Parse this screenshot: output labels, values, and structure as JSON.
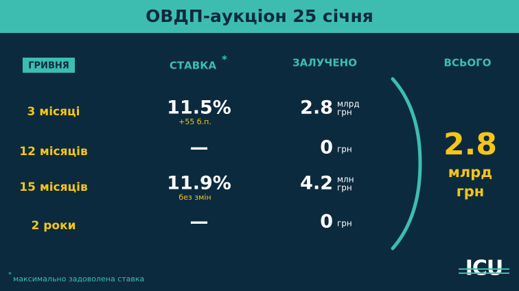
{
  "header": {
    "title": "ОВДП-аукціон 25 січня"
  },
  "columns": {
    "currency": "ГРИВНЯ",
    "rate": "СТАВКА",
    "rate_mark": "*",
    "raised": "ЗАЛУЧЕНО",
    "total": "ВСЬОГО"
  },
  "rows": [
    {
      "term": "3 місяці",
      "rate": "11.5%",
      "rate_note": "+55 б.п.",
      "amount": "2.8",
      "unit": [
        "млрд",
        "грн"
      ]
    },
    {
      "term": "12 місяців",
      "rate": "—",
      "amount": "0",
      "unit": [
        "грн"
      ]
    },
    {
      "term": "15 місяців",
      "rate": "11.9%",
      "rate_note": "без змін",
      "amount": "4.2",
      "unit": [
        "млн",
        "грн"
      ]
    },
    {
      "term": "2 роки",
      "rate": "—",
      "amount": "0",
      "unit": [
        "грн"
      ]
    }
  ],
  "total": {
    "amount": "2.8",
    "unit": [
      "млрд",
      "грн"
    ]
  },
  "footnote": {
    "mark": "*",
    "text": "максимально задоволена ставка"
  },
  "logo": "ICU"
}
